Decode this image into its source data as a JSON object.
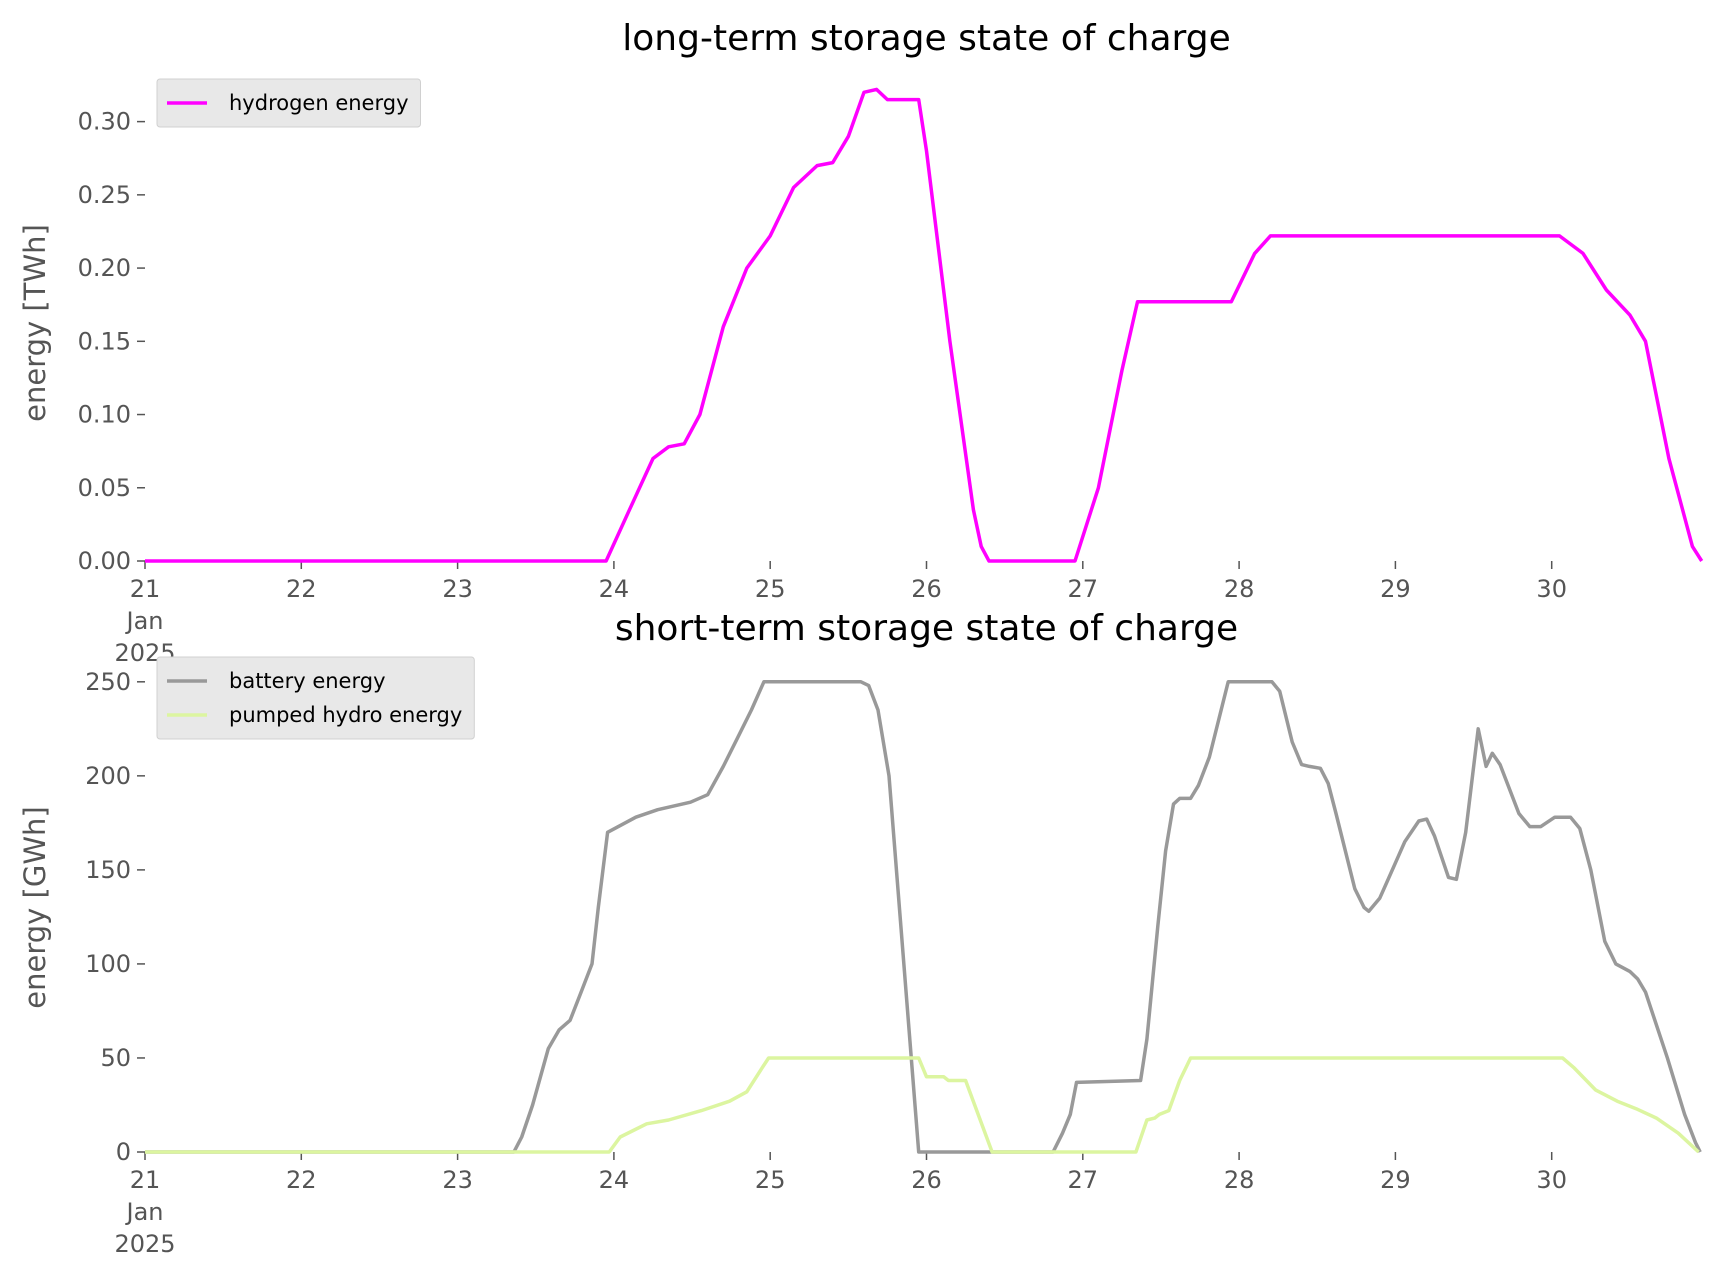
{
  "chart_data": [
    {
      "type": "line",
      "title": "long-term storage state of charge",
      "ylabel": "energy [TWh]",
      "xlim": [
        21,
        31
      ],
      "ylim": [
        0,
        0.325
      ],
      "xticks": [
        {
          "value": 21,
          "label": "21\nJan\n2025"
        },
        22,
        23,
        24,
        25,
        26,
        27,
        28,
        29,
        30
      ],
      "yticks": [
        {
          "value": 0,
          "label": "0.00"
        },
        0.05,
        {
          "value": 0.1,
          "label": "0.10"
        },
        0.15,
        {
          "value": 0.2,
          "label": "0.20"
        },
        0.25,
        {
          "value": 0.3,
          "label": "0.30"
        }
      ],
      "legend": "upper left",
      "series": [
        {
          "name": "hydrogen energy",
          "color": "#ff00ff",
          "x": [
            21,
            23.95,
            24.1,
            24.25,
            24.35,
            24.45,
            24.55,
            24.7,
            24.85,
            25,
            25.15,
            25.3,
            25.4,
            25.5,
            25.6,
            25.68,
            25.75,
            25.95,
            26.0,
            26.15,
            26.3,
            26.35,
            26.4,
            26.95,
            27.1,
            27.25,
            27.35,
            27.95,
            28.1,
            28.2,
            30.05,
            30.2,
            30.35,
            30.5,
            30.6,
            30.75,
            30.9,
            30.96
          ],
          "values": [
            0,
            0,
            0.035,
            0.07,
            0.078,
            0.08,
            0.1,
            0.16,
            0.2,
            0.222,
            0.255,
            0.27,
            0.272,
            0.29,
            0.32,
            0.322,
            0.315,
            0.315,
            0.28,
            0.15,
            0.035,
            0.01,
            0,
            0,
            0.05,
            0.13,
            0.177,
            0.177,
            0.21,
            0.222,
            0.222,
            0.21,
            0.185,
            0.168,
            0.15,
            0.07,
            0.01,
            0
          ]
        }
      ]
    },
    {
      "type": "line",
      "title": "short-term storage state of charge",
      "ylabel": "energy [GWh]",
      "xlim": [
        21,
        31
      ],
      "ylim": [
        0,
        260
      ],
      "xticks": [
        {
          "value": 21,
          "label": "21\nJan\n2025"
        },
        22,
        23,
        24,
        25,
        26,
        27,
        28,
        29,
        30
      ],
      "yticks": [
        0,
        50,
        100,
        150,
        200,
        250
      ],
      "legend": "upper left",
      "series": [
        {
          "name": "battery energy",
          "color": "#999999",
          "x": [
            21,
            23.36,
            23.41,
            23.48,
            23.58,
            23.65,
            23.72,
            23.79,
            23.86,
            23.9,
            23.96,
            24.14,
            24.28,
            24.49,
            24.6,
            24.7,
            24.79,
            24.88,
            24.96,
            25.58,
            25.63,
            25.69,
            25.76,
            25.95,
            26.81,
            26.87,
            26.92,
            26.96,
            27.37,
            27.41,
            27.48,
            27.53,
            27.58,
            27.62,
            27.69,
            27.74,
            27.81,
            27.93,
            28.21,
            28.26,
            28.34,
            28.4,
            28.45,
            28.52,
            28.57,
            28.62,
            28.74,
            28.8,
            28.83,
            28.9,
            28.97,
            29.06,
            29.15,
            29.2,
            29.25,
            29.34,
            29.39,
            29.45,
            29.53,
            29.58,
            29.62,
            29.67,
            29.79,
            29.86,
            29.93,
            30.02,
            30.12,
            30.18,
            30.25,
            30.34,
            30.41,
            30.5,
            30.55,
            30.6,
            30.74,
            30.85,
            30.92,
            30.95
          ],
          "values": [
            0,
            0,
            8,
            25,
            55,
            65,
            70,
            85,
            100,
            130,
            170,
            178,
            182,
            186,
            190,
            205,
            220,
            235,
            250,
            250,
            248,
            235,
            200,
            0,
            0,
            10,
            20,
            37,
            38,
            60,
            120,
            160,
            185,
            188,
            188,
            195,
            210,
            250,
            250,
            245,
            218,
            206,
            205,
            204,
            196,
            180,
            140,
            130,
            128,
            135,
            148,
            165,
            176,
            177,
            168,
            146,
            145,
            170,
            225,
            205,
            212,
            206,
            180,
            173,
            173,
            178,
            178,
            172,
            150,
            112,
            100,
            96,
            92,
            85,
            50,
            20,
            5,
            0
          ]
        },
        {
          "name": "pumped hydro energy",
          "color": "#dcf5a0",
          "x": [
            21,
            23.97,
            24.04,
            24.21,
            24.35,
            24.56,
            24.74,
            24.85,
            24.95,
            24.99,
            25.95,
            26.0,
            26.11,
            26.14,
            26.25,
            26.42,
            27.34,
            27.41,
            27.46,
            27.49,
            27.55,
            27.62,
            27.69,
            30.07,
            30.14,
            30.28,
            30.42,
            30.54,
            30.67,
            30.81,
            30.94
          ],
          "values": [
            0,
            0,
            8,
            15,
            17,
            22,
            27,
            32,
            45,
            50,
            50,
            40,
            40,
            38,
            38,
            0,
            0,
            17,
            18,
            20,
            22,
            38,
            50,
            50,
            45,
            33,
            27,
            23,
            18,
            10,
            0
          ]
        }
      ]
    }
  ]
}
